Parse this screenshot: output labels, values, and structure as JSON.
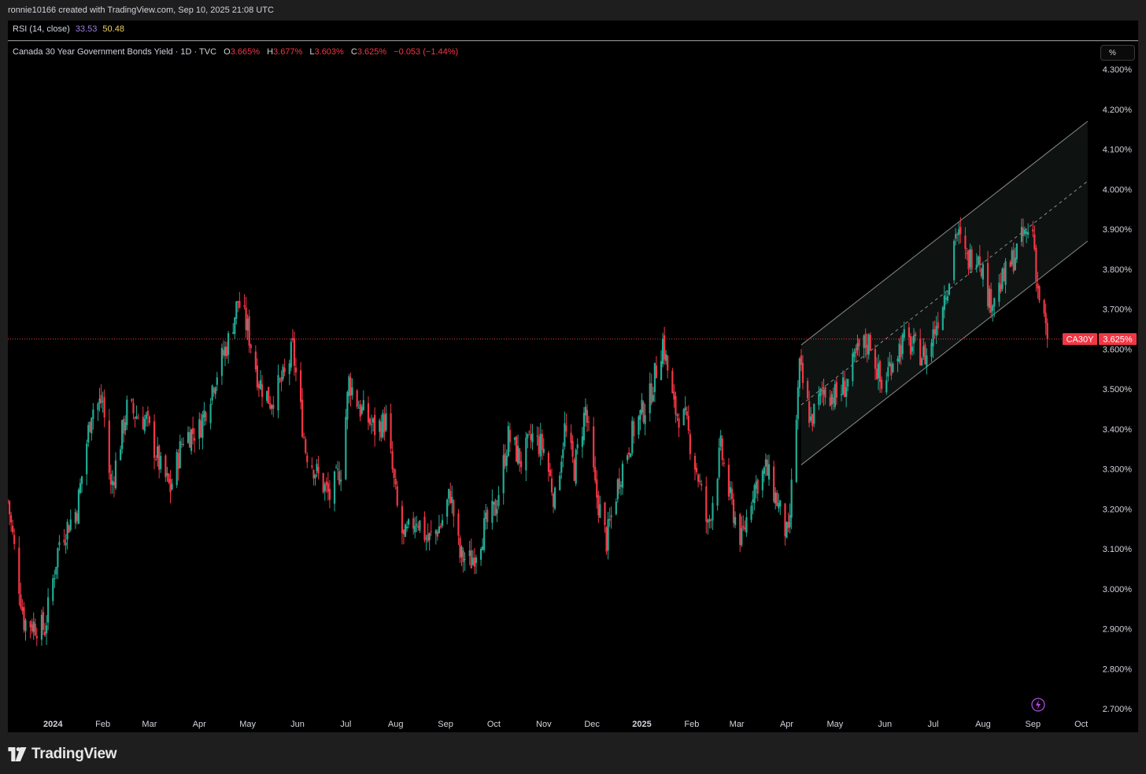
{
  "header": {
    "attribution": "ronnie10166 created with TradingView.com, Sep 10, 2025 21:08 UTC"
  },
  "rsi": {
    "label": "RSI (14, close)",
    "value1": "33.53",
    "value2": "50.48",
    "color1": "#9b7fe0",
    "color2": "#f0d060"
  },
  "legend": {
    "symbol": "Canada 30 Year Government Bonds Yield · 1D · TVC",
    "o_label": "O",
    "o_value": "3.665%",
    "h_label": "H",
    "h_value": "3.677%",
    "l_label": "L",
    "l_value": "3.603%",
    "c_label": "C",
    "c_value": "3.625%",
    "change": "−0.053 (−1.44%)"
  },
  "unit_button": "%",
  "footer": {
    "brand": "TradingView"
  },
  "colors": {
    "up": "#22ab94",
    "down": "#f23645",
    "background": "#000000",
    "price_line": "#f23645",
    "channel": "#8a8a8a"
  },
  "chart_data": {
    "type": "candlestick",
    "symbol": "CA30Y",
    "last_price_label": "CA30Y",
    "last_price": 3.625,
    "last_price_text": "3.625%",
    "ylim": [
      2.7,
      4.3
    ],
    "y_ticks": [
      "4.300%",
      "4.200%",
      "4.100%",
      "4.000%",
      "3.900%",
      "3.800%",
      "3.700%",
      "3.600%",
      "3.500%",
      "3.400%",
      "3.300%",
      "3.200%",
      "3.100%",
      "3.000%",
      "2.900%",
      "2.800%",
      "2.700%"
    ],
    "x_ticks": [
      {
        "label": "2024",
        "date": "2024-01-01",
        "bold": true
      },
      {
        "label": "Feb",
        "date": "2024-02-01"
      },
      {
        "label": "Mar",
        "date": "2024-03-01"
      },
      {
        "label": "Apr",
        "date": "2024-04-01"
      },
      {
        "label": "May",
        "date": "2024-05-01"
      },
      {
        "label": "Jun",
        "date": "2024-06-01"
      },
      {
        "label": "Jul",
        "date": "2024-07-01"
      },
      {
        "label": "Aug",
        "date": "2024-08-01"
      },
      {
        "label": "Sep",
        "date": "2024-09-01"
      },
      {
        "label": "Oct",
        "date": "2024-10-01"
      },
      {
        "label": "Nov",
        "date": "2024-11-01"
      },
      {
        "label": "Dec",
        "date": "2024-12-01"
      },
      {
        "label": "2025",
        "date": "2025-01-01",
        "bold": true
      },
      {
        "label": "Feb",
        "date": "2025-02-01"
      },
      {
        "label": "Mar",
        "date": "2025-03-01"
      },
      {
        "label": "Apr",
        "date": "2025-04-01"
      },
      {
        "label": "May",
        "date": "2025-05-01"
      },
      {
        "label": "Jun",
        "date": "2025-06-01"
      },
      {
        "label": "Jul",
        "date": "2025-07-01"
      },
      {
        "label": "Aug",
        "date": "2025-08-01"
      },
      {
        "label": "Sep",
        "date": "2025-09-01"
      },
      {
        "label": "Oct",
        "date": "2025-10-01"
      }
    ],
    "close_path": [
      {
        "date": "2023-12-04",
        "close": 3.22
      },
      {
        "date": "2023-12-14",
        "close": 2.92
      },
      {
        "date": "2023-12-27",
        "close": 2.9
      },
      {
        "date": "2024-01-05",
        "close": 3.12
      },
      {
        "date": "2024-01-16",
        "close": 3.2
      },
      {
        "date": "2024-01-25",
        "close": 3.45
      },
      {
        "date": "2024-02-01",
        "close": 3.47
      },
      {
        "date": "2024-02-06",
        "close": 3.25
      },
      {
        "date": "2024-02-16",
        "close": 3.45
      },
      {
        "date": "2024-02-28",
        "close": 3.42
      },
      {
        "date": "2024-03-08",
        "close": 3.3
      },
      {
        "date": "2024-03-14",
        "close": 3.25
      },
      {
        "date": "2024-03-22",
        "close": 3.38
      },
      {
        "date": "2024-04-01",
        "close": 3.4
      },
      {
        "date": "2024-04-10",
        "close": 3.52
      },
      {
        "date": "2024-04-19",
        "close": 3.62
      },
      {
        "date": "2024-04-25",
        "close": 3.72
      },
      {
        "date": "2024-05-01",
        "close": 3.65
      },
      {
        "date": "2024-05-08",
        "close": 3.52
      },
      {
        "date": "2024-05-15",
        "close": 3.47
      },
      {
        "date": "2024-05-24",
        "close": 3.53
      },
      {
        "date": "2024-05-29",
        "close": 3.6
      },
      {
        "date": "2024-06-06",
        "close": 3.35
      },
      {
        "date": "2024-06-14",
        "close": 3.28
      },
      {
        "date": "2024-06-21",
        "close": 3.23
      },
      {
        "date": "2024-06-28",
        "close": 3.3
      },
      {
        "date": "2024-07-03",
        "close": 3.52
      },
      {
        "date": "2024-07-10",
        "close": 3.45
      },
      {
        "date": "2024-07-19",
        "close": 3.4
      },
      {
        "date": "2024-07-26",
        "close": 3.42
      },
      {
        "date": "2024-08-02",
        "close": 3.2
      },
      {
        "date": "2024-08-06",
        "close": 3.12
      },
      {
        "date": "2024-08-14",
        "close": 3.18
      },
      {
        "date": "2024-08-21",
        "close": 3.12
      },
      {
        "date": "2024-08-29",
        "close": 3.16
      },
      {
        "date": "2024-09-04",
        "close": 3.24
      },
      {
        "date": "2024-09-10",
        "close": 3.08
      },
      {
        "date": "2024-09-17",
        "close": 3.07
      },
      {
        "date": "2024-09-25",
        "close": 3.15
      },
      {
        "date": "2024-10-02",
        "close": 3.2
      },
      {
        "date": "2024-10-10",
        "close": 3.38
      },
      {
        "date": "2024-10-18",
        "close": 3.32
      },
      {
        "date": "2024-10-25",
        "close": 3.38
      },
      {
        "date": "2024-11-01",
        "close": 3.35
      },
      {
        "date": "2024-11-08",
        "close": 3.22
      },
      {
        "date": "2024-11-14",
        "close": 3.4
      },
      {
        "date": "2024-11-20",
        "close": 3.3
      },
      {
        "date": "2024-11-27",
        "close": 3.45
      },
      {
        "date": "2024-12-03",
        "close": 3.25
      },
      {
        "date": "2024-12-10",
        "close": 3.12
      },
      {
        "date": "2024-12-18",
        "close": 3.28
      },
      {
        "date": "2024-12-27",
        "close": 3.4
      },
      {
        "date": "2025-01-06",
        "close": 3.48
      },
      {
        "date": "2025-01-14",
        "close": 3.62
      },
      {
        "date": "2025-01-21",
        "close": 3.45
      },
      {
        "date": "2025-01-28",
        "close": 3.42
      },
      {
        "date": "2025-02-05",
        "close": 3.28
      },
      {
        "date": "2025-02-11",
        "close": 3.15
      },
      {
        "date": "2025-02-19",
        "close": 3.35
      },
      {
        "date": "2025-02-25",
        "close": 3.22
      },
      {
        "date": "2025-03-04",
        "close": 3.12
      },
      {
        "date": "2025-03-11",
        "close": 3.25
      },
      {
        "date": "2025-03-19",
        "close": 3.3
      },
      {
        "date": "2025-03-26",
        "close": 3.22
      },
      {
        "date": "2025-04-02",
        "close": 3.12
      },
      {
        "date": "2025-04-04",
        "close": 3.25
      },
      {
        "date": "2025-04-09",
        "close": 3.55
      },
      {
        "date": "2025-04-16",
        "close": 3.42
      },
      {
        "date": "2025-04-24",
        "close": 3.5
      },
      {
        "date": "2025-05-02",
        "close": 3.48
      },
      {
        "date": "2025-05-09",
        "close": 3.52
      },
      {
        "date": "2025-05-16",
        "close": 3.6
      },
      {
        "date": "2025-05-23",
        "close": 3.62
      },
      {
        "date": "2025-05-30",
        "close": 3.5
      },
      {
        "date": "2025-06-06",
        "close": 3.58
      },
      {
        "date": "2025-06-13",
        "close": 3.62
      },
      {
        "date": "2025-06-20",
        "close": 3.6
      },
      {
        "date": "2025-06-27",
        "close": 3.58
      },
      {
        "date": "2025-07-04",
        "close": 3.68
      },
      {
        "date": "2025-07-11",
        "close": 3.78
      },
      {
        "date": "2025-07-15",
        "close": 3.9
      },
      {
        "date": "2025-07-22",
        "close": 3.82
      },
      {
        "date": "2025-07-29",
        "close": 3.85
      },
      {
        "date": "2025-08-05",
        "close": 3.72
      },
      {
        "date": "2025-08-12",
        "close": 3.76
      },
      {
        "date": "2025-08-19",
        "close": 3.82
      },
      {
        "date": "2025-08-26",
        "close": 3.88
      },
      {
        "date": "2025-09-01",
        "close": 3.9
      },
      {
        "date": "2025-09-04",
        "close": 3.75
      },
      {
        "date": "2025-09-09",
        "close": 3.65
      },
      {
        "date": "2025-09-10",
        "close": 3.625
      }
    ],
    "channel": {
      "start_date": "2025-04-10",
      "end_date": "2025-10-05",
      "upper": [
        3.61,
        4.17
      ],
      "middle": [
        3.46,
        4.02
      ],
      "lower": [
        3.31,
        3.87
      ]
    }
  }
}
